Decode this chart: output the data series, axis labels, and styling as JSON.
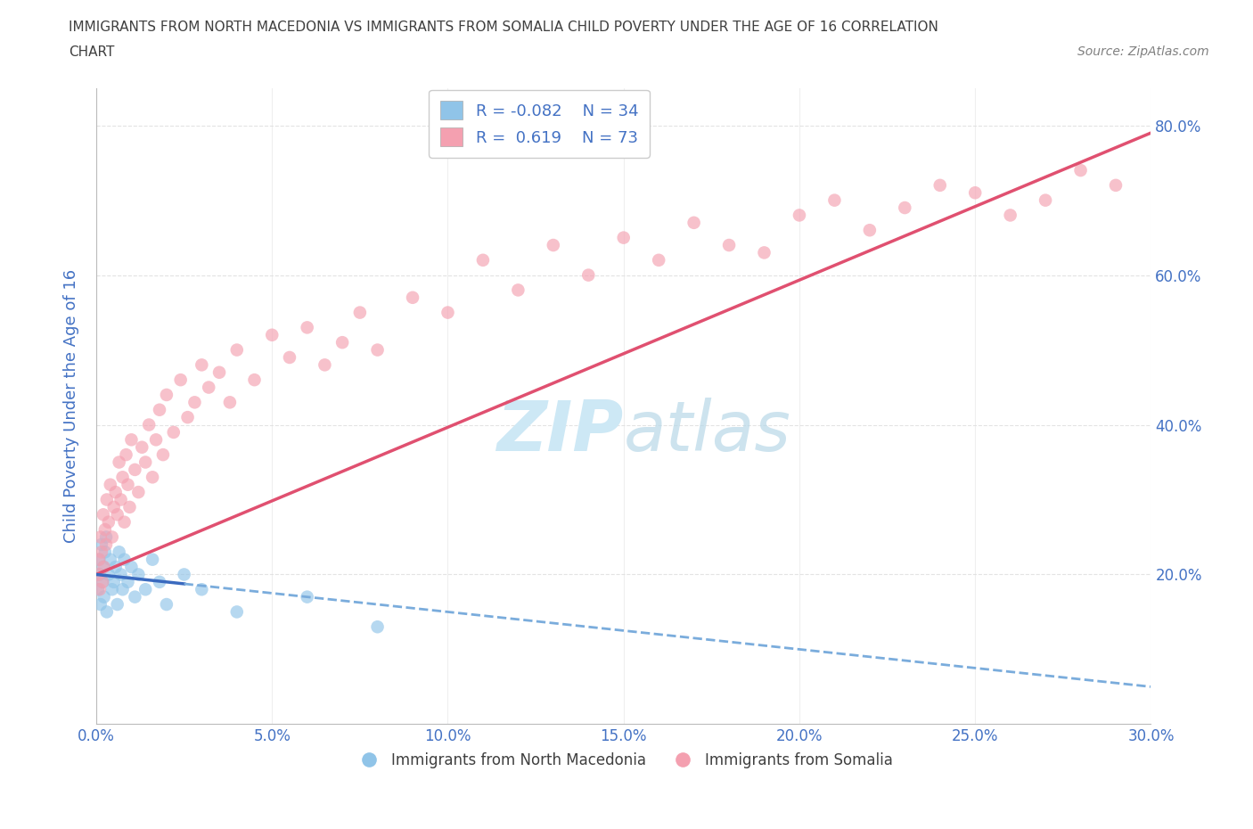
{
  "title_line1": "IMMIGRANTS FROM NORTH MACEDONIA VS IMMIGRANTS FROM SOMALIA CHILD POVERTY UNDER THE AGE OF 16 CORRELATION",
  "title_line2": "CHART",
  "source_text": "Source: ZipAtlas.com",
  "ylabel": "Child Poverty Under the Age of 16",
  "x_tick_labels": [
    "0.0%",
    "5.0%",
    "10.0%",
    "15.0%",
    "20.0%",
    "25.0%",
    "30.0%"
  ],
  "x_tick_values": [
    0,
    5,
    10,
    15,
    20,
    25,
    30
  ],
  "y_tick_labels": [
    "20.0%",
    "40.0%",
    "60.0%",
    "80.0%"
  ],
  "y_tick_values": [
    20,
    40,
    60,
    80
  ],
  "xlim": [
    0,
    30
  ],
  "ylim": [
    0,
    85
  ],
  "legend_r1": "-0.082",
  "legend_n1": "34",
  "legend_r2": "0.619",
  "legend_n2": "73",
  "color_blue": "#90c4e8",
  "color_pink": "#f4a0b0",
  "color_blue_line_solid": "#3a6abf",
  "color_blue_line_dash": "#7aacdc",
  "color_pink_line": "#e05070",
  "color_blue_text": "#4472c4",
  "color_title": "#404040",
  "color_source": "#808080",
  "watermark_color": "#cde8f5",
  "background_color": "#ffffff",
  "grid_color": "#e0e0e0",
  "north_macedonia_x": [
    0.05,
    0.08,
    0.1,
    0.12,
    0.15,
    0.18,
    0.2,
    0.22,
    0.25,
    0.28,
    0.3,
    0.35,
    0.4,
    0.45,
    0.5,
    0.55,
    0.6,
    0.65,
    0.7,
    0.75,
    0.8,
    0.9,
    1.0,
    1.1,
    1.2,
    1.4,
    1.6,
    1.8,
    2.0,
    2.5,
    3.0,
    4.0,
    6.0,
    8.0
  ],
  "north_macedonia_y": [
    18,
    22,
    20,
    16,
    24,
    19,
    21,
    17,
    23,
    25,
    15,
    20,
    22,
    18,
    19,
    21,
    16,
    23,
    20,
    18,
    22,
    19,
    21,
    17,
    20,
    18,
    22,
    19,
    16,
    20,
    18,
    15,
    17,
    13
  ],
  "somalia_x": [
    0.05,
    0.08,
    0.1,
    0.12,
    0.15,
    0.18,
    0.2,
    0.22,
    0.25,
    0.28,
    0.3,
    0.35,
    0.4,
    0.45,
    0.5,
    0.55,
    0.6,
    0.65,
    0.7,
    0.75,
    0.8,
    0.85,
    0.9,
    0.95,
    1.0,
    1.1,
    1.2,
    1.3,
    1.4,
    1.5,
    1.6,
    1.7,
    1.8,
    1.9,
    2.0,
    2.2,
    2.4,
    2.6,
    2.8,
    3.0,
    3.2,
    3.5,
    3.8,
    4.0,
    4.5,
    5.0,
    5.5,
    6.0,
    6.5,
    7.0,
    7.5,
    8.0,
    9.0,
    10.0,
    11.0,
    12.0,
    13.0,
    14.0,
    15.0,
    16.0,
    17.0,
    18.0,
    19.0,
    20.0,
    21.0,
    22.0,
    23.0,
    24.0,
    25.0,
    26.0,
    27.0,
    28.0,
    29.0
  ],
  "somalia_y": [
    20,
    22,
    18,
    25,
    23,
    19,
    28,
    21,
    26,
    24,
    30,
    27,
    32,
    25,
    29,
    31,
    28,
    35,
    30,
    33,
    27,
    36,
    32,
    29,
    38,
    34,
    31,
    37,
    35,
    40,
    33,
    38,
    42,
    36,
    44,
    39,
    46,
    41,
    43,
    48,
    45,
    47,
    43,
    50,
    46,
    52,
    49,
    53,
    48,
    51,
    55,
    50,
    57,
    55,
    62,
    58,
    64,
    60,
    65,
    62,
    67,
    64,
    63,
    68,
    70,
    66,
    69,
    72,
    71,
    68,
    70,
    74,
    72
  ],
  "pink_trendline_x0": 0,
  "pink_trendline_y0": 20,
  "pink_trendline_x1": 30,
  "pink_trendline_y1": 79,
  "blue_trendline_x0": 0,
  "blue_trendline_y0": 20,
  "blue_trendline_x1": 30,
  "blue_trendline_y1": 5,
  "blue_solid_end_x": 2.5
}
